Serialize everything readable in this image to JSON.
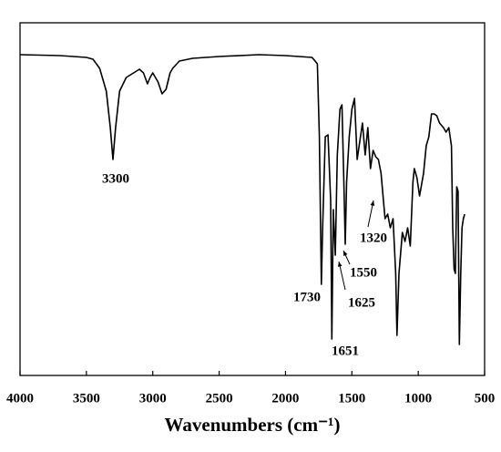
{
  "chart_data": {
    "type": "line",
    "xlabel": "Wavenumbers (cm⁻¹)",
    "x": [
      4000,
      3700,
      3500,
      3450,
      3400,
      3350,
      3320,
      3300,
      3280,
      3250,
      3200,
      3100,
      3070,
      3040,
      3020,
      3000,
      2960,
      2930,
      2900,
      2870,
      2850,
      2800,
      2700,
      2500,
      2200,
      2000,
      1800,
      1760,
      1745,
      1730,
      1720,
      1700,
      1680,
      1660,
      1651,
      1640,
      1625,
      1610,
      1590,
      1575,
      1560,
      1550,
      1540,
      1520,
      1500,
      1480,
      1460,
      1420,
      1400,
      1380,
      1360,
      1340,
      1320,
      1300,
      1280,
      1250,
      1230,
      1210,
      1190,
      1170,
      1160,
      1145,
      1120,
      1100,
      1080,
      1060,
      1040,
      1030,
      1010,
      990,
      960,
      940,
      920,
      900,
      880,
      860,
      840,
      810,
      790,
      770,
      750,
      740,
      730,
      720,
      710,
      700,
      695,
      690,
      680,
      670,
      660,
      650
    ],
    "values": [
      352,
      351,
      349,
      347,
      337,
      312,
      272,
      237,
      272,
      312,
      327,
      336,
      332,
      320,
      327,
      332,
      322,
      309,
      314,
      332,
      337,
      345,
      348,
      350,
      352,
      351,
      349,
      342,
      262,
      100,
      162,
      262,
      264,
      192,
      40,
      182,
      132,
      242,
      292,
      297,
      212,
      144,
      212,
      262,
      292,
      304,
      237,
      277,
      242,
      272,
      227,
      247,
      240,
      237,
      222,
      172,
      177,
      162,
      172,
      112,
      44,
      112,
      157,
      147,
      162,
      142,
      212,
      227,
      217,
      197,
      222,
      252,
      262,
      287,
      287,
      285,
      277,
      272,
      267,
      272,
      252,
      162,
      117,
      112,
      207,
      202,
      112,
      34,
      112,
      162,
      172,
      177
    ],
    "xlim": [
      4000,
      500
    ],
    "ylim": [
      0,
      387
    ],
    "xticks": [
      4000,
      3500,
      3000,
      2500,
      2000,
      1500,
      1000,
      500
    ],
    "color": "#000000",
    "annotations": [
      "3300",
      "1730",
      "1651",
      "1625",
      "1550",
      "1320"
    ]
  }
}
